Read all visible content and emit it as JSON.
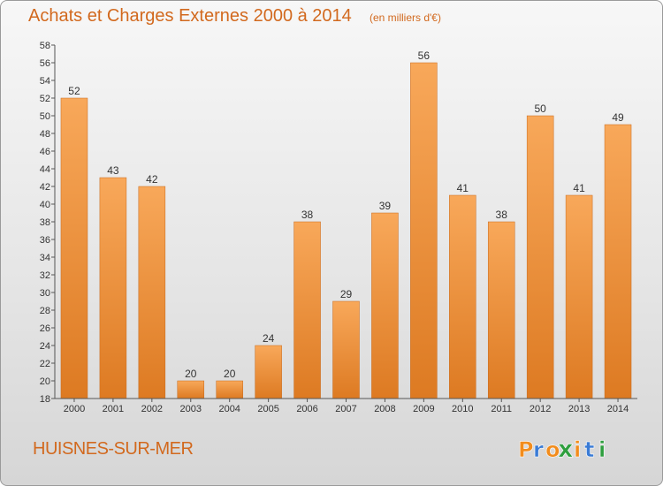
{
  "header": {
    "title": "Achats et Charges Externes 2000 à 2014",
    "subtitle": "(en milliers d'€)"
  },
  "footer": {
    "commune": "HUISNES-SUR-MER",
    "logo_text": "Proxiti"
  },
  "colors": {
    "title": "#d2691e",
    "bar_light": "#f8a85a",
    "bar_dark": "#dd7a22",
    "logo_letters": [
      "#f28c1c",
      "#3a7bd5",
      "#f28c1c",
      "#2e9e3e",
      "#f28c1c",
      "#3a7bd5",
      "#2e9e3e"
    ]
  },
  "chart_data": {
    "type": "bar",
    "title": "Achats et Charges Externes 2000 à 2014",
    "subtitle": "(en milliers d'€)",
    "categories": [
      "2000",
      "2001",
      "2002",
      "2003",
      "2004",
      "2005",
      "2006",
      "2007",
      "2008",
      "2009",
      "2010",
      "2011",
      "2012",
      "2013",
      "2014"
    ],
    "values": [
      52,
      43,
      42,
      20,
      20,
      24,
      38,
      29,
      39,
      56,
      41,
      38,
      50,
      41,
      49
    ],
    "ylim": [
      18,
      58
    ],
    "ytick_step": 2,
    "grid": false,
    "legend": "none"
  }
}
